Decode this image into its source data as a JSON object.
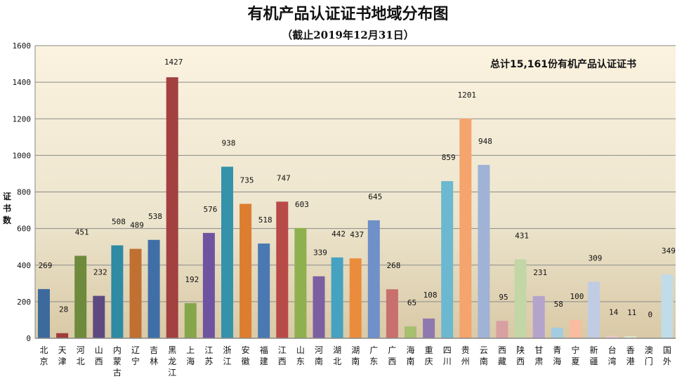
{
  "chart_data": {
    "type": "bar",
    "title": "有机产品认证证书地域分布图",
    "subtitle": "（截止2019年12月31日）",
    "ylabel": "证书数",
    "xlabel": "",
    "annotation": "总计15,161份有机产品认证证书",
    "ylim": [
      0,
      1600
    ],
    "yticks": [
      "0",
      "200",
      "400",
      "600",
      "800",
      "1000",
      "1200",
      "1400",
      "1600"
    ],
    "grid": true,
    "categories": [
      "北京",
      "天津",
      "河北",
      "山西",
      "内蒙古",
      "辽宁",
      "吉林",
      "黑龙江",
      "上海",
      "江苏",
      "浙江",
      "安徽",
      "福建",
      "江西",
      "山东",
      "河南",
      "湖北",
      "湖南",
      "广东",
      "广西",
      "海南",
      "重庆",
      "四川",
      "贵州",
      "云南",
      "西藏",
      "陕西",
      "甘肃",
      "青海",
      "宁夏",
      "新疆",
      "台湾",
      "香港",
      "澳门",
      "国外"
    ],
    "values": [
      269,
      28,
      451,
      232,
      508,
      489,
      538,
      1427,
      192,
      576,
      938,
      735,
      518,
      747,
      603,
      339,
      442,
      437,
      645,
      268,
      65,
      108,
      859,
      1201,
      948,
      95,
      431,
      231,
      58,
      100,
      309,
      14,
      11,
      0,
      349
    ],
    "colors": [
      "#3d6a9c",
      "#a03c3c",
      "#6e8a3c",
      "#5e4a80",
      "#2f8aa3",
      "#c07030",
      "#3f6fa6",
      "#a34040",
      "#86a64a",
      "#6e54a0",
      "#3592ab",
      "#dc7d30",
      "#4a78b3",
      "#b84a48",
      "#8fb04e",
      "#7b5fa0",
      "#45a2c0",
      "#eb8c3c",
      "#6f90c8",
      "#c8706e",
      "#a6c070",
      "#8e78b0",
      "#6cb8d0",
      "#f4a46c",
      "#a0b2d6",
      "#d8a0a0",
      "#c2d6a6",
      "#b4a4cc",
      "#a4cce0",
      "#f8bca0",
      "#c0cce4",
      "#e8c8c8",
      "#e0e8d0",
      "#e0e0e0",
      "#c0dce8"
    ]
  }
}
